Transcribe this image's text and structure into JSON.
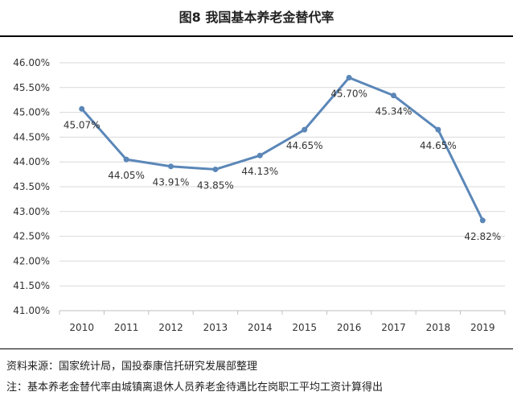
{
  "title": "图8 我国基本养老金替代率",
  "source": "资料来源：国家统计局，国投泰康信托研究发展部整理",
  "note": "注：基本养老金替代率由城镇离退休人员养老金待遇比在岗职工平均工资计算得出",
  "colors": {
    "series": "#5b87b8",
    "grid": "#d9d9d9",
    "axis": "#bfbfbf"
  },
  "chart_data": {
    "type": "line",
    "title": "图8 我国基本养老金替代率",
    "x": [
      "2010",
      "2011",
      "2012",
      "2013",
      "2014",
      "2015",
      "2016",
      "2017",
      "2018",
      "2019"
    ],
    "series": [
      {
        "values": [
          45.07,
          44.05,
          43.91,
          43.85,
          44.13,
          44.65,
          45.7,
          45.34,
          44.65,
          42.82
        ],
        "labels": [
          "45.07%",
          "44.05%",
          "43.91%",
          "43.85%",
          "44.13%",
          "44.65%",
          "45.70%",
          "45.34%",
          "44.65%",
          "42.82%"
        ]
      }
    ],
    "yticks": [
      "41.00%",
      "41.50%",
      "42.00%",
      "42.50%",
      "43.00%",
      "43.50%",
      "44.00%",
      "44.50%",
      "45.00%",
      "45.50%",
      "46.00%"
    ],
    "ylim": [
      41.0,
      46.0
    ],
    "ytick_step": 0.5,
    "grid": true,
    "legend": "none"
  }
}
